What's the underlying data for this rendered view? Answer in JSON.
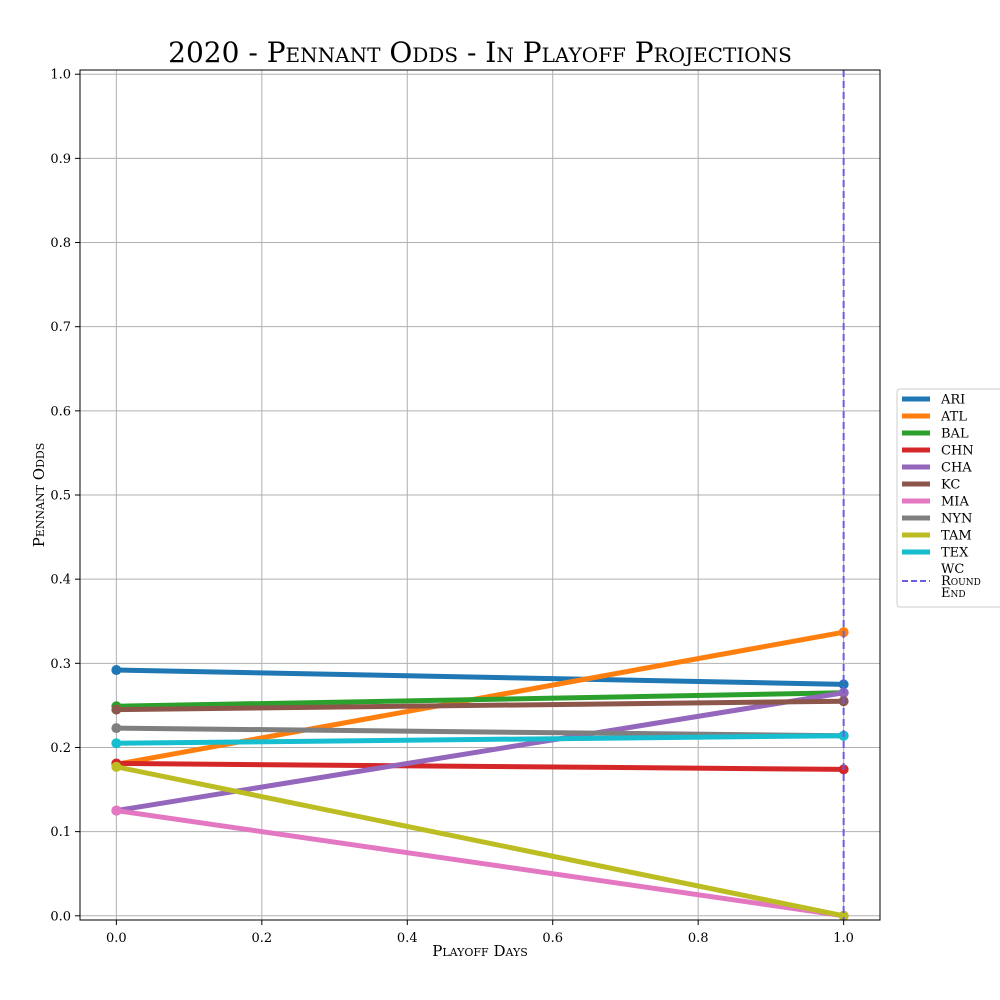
{
  "chart_data": {
    "type": "line",
    "title": "2020 - Pennant Odds - In Playoff Projections",
    "xlabel": "Playoff Days",
    "ylabel": "Pennant Odds",
    "xlim": [
      -0.05,
      1.05
    ],
    "ylim": [
      -0.005,
      1.005
    ],
    "x_ticks": [
      "0.0",
      "0.2",
      "0.4",
      "0.6",
      "0.8",
      "1.0"
    ],
    "y_ticks": [
      "0.0",
      "0.1",
      "0.2",
      "0.3",
      "0.4",
      "0.5",
      "0.6",
      "0.7",
      "0.8",
      "0.9",
      "1.0"
    ],
    "grid": true,
    "legend_position": "right",
    "x": [
      0.0,
      1.0
    ],
    "series": [
      {
        "name": "ARI",
        "color": "#1f77b4",
        "values": [
          0.292,
          0.275
        ]
      },
      {
        "name": "ATL",
        "color": "#ff7f0e",
        "values": [
          0.18,
          0.337
        ]
      },
      {
        "name": "BAL",
        "color": "#2ca02c",
        "values": [
          0.249,
          0.265
        ]
      },
      {
        "name": "CHN",
        "color": "#d62728",
        "values": [
          0.181,
          0.174
        ]
      },
      {
        "name": "CHA",
        "color": "#9467bd",
        "values": [
          0.125,
          0.265
        ]
      },
      {
        "name": "KC",
        "color": "#8c564b",
        "values": [
          0.245,
          0.255
        ]
      },
      {
        "name": "MIA",
        "color": "#e377c2",
        "values": [
          0.125,
          0.0
        ]
      },
      {
        "name": "NYN",
        "color": "#7f7f7f",
        "values": [
          0.223,
          0.214
        ]
      },
      {
        "name": "TAM",
        "color": "#bcbd22",
        "values": [
          0.177,
          0.0
        ]
      },
      {
        "name": "TEX",
        "color": "#17becf",
        "values": [
          0.205,
          0.214
        ]
      }
    ],
    "vline": {
      "name": "WC Round End",
      "x": 1.0,
      "color": "#6a5fe0",
      "style": "dashed"
    }
  }
}
